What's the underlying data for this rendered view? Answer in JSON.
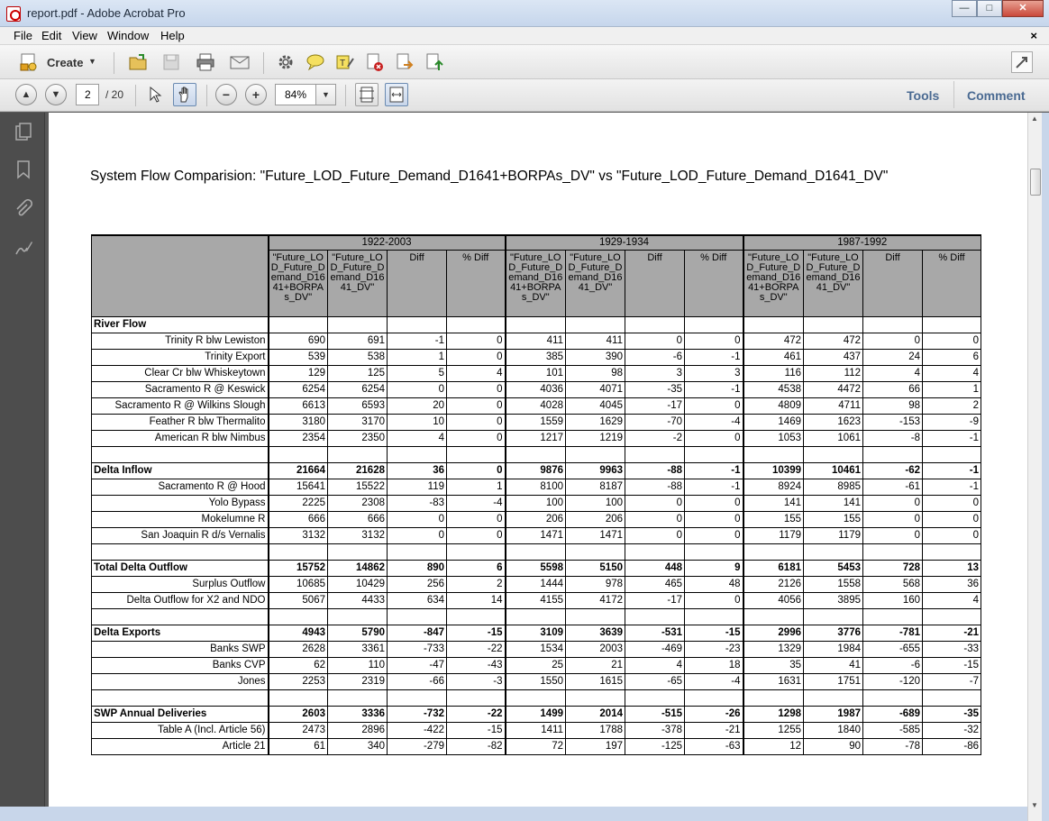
{
  "window": {
    "title": "report.pdf - Adobe Acrobat Pro",
    "minimize": "—",
    "maximize": "□",
    "close": "✕"
  },
  "menu": {
    "items": [
      "File",
      "Edit",
      "View",
      "Window",
      "Help"
    ],
    "close": "×"
  },
  "toolbar": {
    "create_label": "Create",
    "icons": [
      "open-icon",
      "save-icon",
      "print-icon",
      "email-icon",
      "gear-icon",
      "comment-icon",
      "highlight-icon",
      "sign-icon",
      "share-icon",
      "upload-icon"
    ]
  },
  "nav": {
    "page_current": "2",
    "page_total": "/ 20",
    "zoom": "84%"
  },
  "panels": {
    "tools": "Tools",
    "comment": "Comment"
  },
  "document": {
    "title": "System Flow Comparision: \"Future_LOD_Future_Demand_D1641+BORPAs_DV\" vs \"Future_LOD_Future_Demand_D1641_DV\"",
    "periods": [
      "1922-2003",
      "1929-1934",
      "1987-1992"
    ],
    "col_heads": [
      "\"Future_LOD_Future_Demand_D1641+BORPAs_DV\"",
      "\"Future_LOD_Future_Demand_D1641_DV\"",
      "Diff",
      "% Diff"
    ],
    "rows": [
      {
        "label": "River Flow",
        "type": "category",
        "vals": []
      },
      {
        "label": "Trinity R blw Lewiston",
        "type": "row",
        "vals": [
          "690",
          "691",
          "-1",
          "0",
          "411",
          "411",
          "0",
          "0",
          "472",
          "472",
          "0",
          "0"
        ]
      },
      {
        "label": "Trinity Export",
        "type": "row",
        "vals": [
          "539",
          "538",
          "1",
          "0",
          "385",
          "390",
          "-6",
          "-1",
          "461",
          "437",
          "24",
          "6"
        ]
      },
      {
        "label": "Clear Cr blw Whiskeytown",
        "type": "row",
        "vals": [
          "129",
          "125",
          "5",
          "4",
          "101",
          "98",
          "3",
          "3",
          "116",
          "112",
          "4",
          "4"
        ]
      },
      {
        "label": "Sacramento R @ Keswick",
        "type": "row",
        "vals": [
          "6254",
          "6254",
          "0",
          "0",
          "4036",
          "4071",
          "-35",
          "-1",
          "4538",
          "4472",
          "66",
          "1"
        ]
      },
      {
        "label": "Sacramento R @ Wilkins Slough",
        "type": "row",
        "vals": [
          "6613",
          "6593",
          "20",
          "0",
          "4028",
          "4045",
          "-17",
          "0",
          "4809",
          "4711",
          "98",
          "2"
        ]
      },
      {
        "label": "Feather R blw Thermalito",
        "type": "row",
        "vals": [
          "3180",
          "3170",
          "10",
          "0",
          "1559",
          "1629",
          "-70",
          "-4",
          "1469",
          "1623",
          "-153",
          "-9"
        ]
      },
      {
        "label": "American R blw Nimbus",
        "type": "row",
        "vals": [
          "2354",
          "2350",
          "4",
          "0",
          "1217",
          "1219",
          "-2",
          "0",
          "1053",
          "1061",
          "-8",
          "-1"
        ]
      },
      {
        "label": "",
        "type": "blank",
        "vals": []
      },
      {
        "label": "Delta Inflow",
        "type": "total",
        "vals": [
          "21664",
          "21628",
          "36",
          "0",
          "9876",
          "9963",
          "-88",
          "-1",
          "10399",
          "10461",
          "-62",
          "-1"
        ]
      },
      {
        "label": "Sacramento R @ Hood",
        "type": "row",
        "vals": [
          "15641",
          "15522",
          "119",
          "1",
          "8100",
          "8187",
          "-88",
          "-1",
          "8924",
          "8985",
          "-61",
          "-1"
        ]
      },
      {
        "label": "Yolo Bypass",
        "type": "row",
        "vals": [
          "2225",
          "2308",
          "-83",
          "-4",
          "100",
          "100",
          "0",
          "0",
          "141",
          "141",
          "0",
          "0"
        ]
      },
      {
        "label": "Mokelumne R",
        "type": "row",
        "vals": [
          "666",
          "666",
          "0",
          "0",
          "206",
          "206",
          "0",
          "0",
          "155",
          "155",
          "0",
          "0"
        ]
      },
      {
        "label": "San Joaquin R d/s Vernalis",
        "type": "row",
        "vals": [
          "3132",
          "3132",
          "0",
          "0",
          "1471",
          "1471",
          "0",
          "0",
          "1179",
          "1179",
          "0",
          "0"
        ]
      },
      {
        "label": "",
        "type": "blank",
        "vals": []
      },
      {
        "label": "Total Delta Outflow",
        "type": "total",
        "vals": [
          "15752",
          "14862",
          "890",
          "6",
          "5598",
          "5150",
          "448",
          "9",
          "6181",
          "5453",
          "728",
          "13"
        ]
      },
      {
        "label": "Surplus Outflow",
        "type": "row",
        "vals": [
          "10685",
          "10429",
          "256",
          "2",
          "1444",
          "978",
          "465",
          "48",
          "2126",
          "1558",
          "568",
          "36"
        ]
      },
      {
        "label": "Delta Outflow for X2 and NDO",
        "type": "row",
        "vals": [
          "5067",
          "4433",
          "634",
          "14",
          "4155",
          "4172",
          "-17",
          "0",
          "4056",
          "3895",
          "160",
          "4"
        ]
      },
      {
        "label": "",
        "type": "blank",
        "vals": []
      },
      {
        "label": "Delta Exports",
        "type": "total",
        "vals": [
          "4943",
          "5790",
          "-847",
          "-15",
          "3109",
          "3639",
          "-531",
          "-15",
          "2996",
          "3776",
          "-781",
          "-21"
        ]
      },
      {
        "label": "Banks SWP",
        "type": "row",
        "vals": [
          "2628",
          "3361",
          "-733",
          "-22",
          "1534",
          "2003",
          "-469",
          "-23",
          "1329",
          "1984",
          "-655",
          "-33"
        ]
      },
      {
        "label": "Banks CVP",
        "type": "row",
        "vals": [
          "62",
          "110",
          "-47",
          "-43",
          "25",
          "21",
          "4",
          "18",
          "35",
          "41",
          "-6",
          "-15"
        ]
      },
      {
        "label": "Jones",
        "type": "row",
        "vals": [
          "2253",
          "2319",
          "-66",
          "-3",
          "1550",
          "1615",
          "-65",
          "-4",
          "1631",
          "1751",
          "-120",
          "-7"
        ]
      },
      {
        "label": "",
        "type": "blank",
        "vals": []
      },
      {
        "label": "SWP Annual Deliveries",
        "type": "total",
        "vals": [
          "2603",
          "3336",
          "-732",
          "-22",
          "1499",
          "2014",
          "-515",
          "-26",
          "1298",
          "1987",
          "-689",
          "-35"
        ]
      },
      {
        "label": "Table A (Incl. Article 56)",
        "type": "row",
        "vals": [
          "2473",
          "2896",
          "-422",
          "-15",
          "1411",
          "1788",
          "-378",
          "-21",
          "1255",
          "1840",
          "-585",
          "-32"
        ]
      },
      {
        "label": "Article 21",
        "type": "row",
        "vals": [
          "61",
          "340",
          "-279",
          "-82",
          "72",
          "197",
          "-125",
          "-63",
          "12",
          "90",
          "-78",
          "-86"
        ]
      }
    ]
  }
}
